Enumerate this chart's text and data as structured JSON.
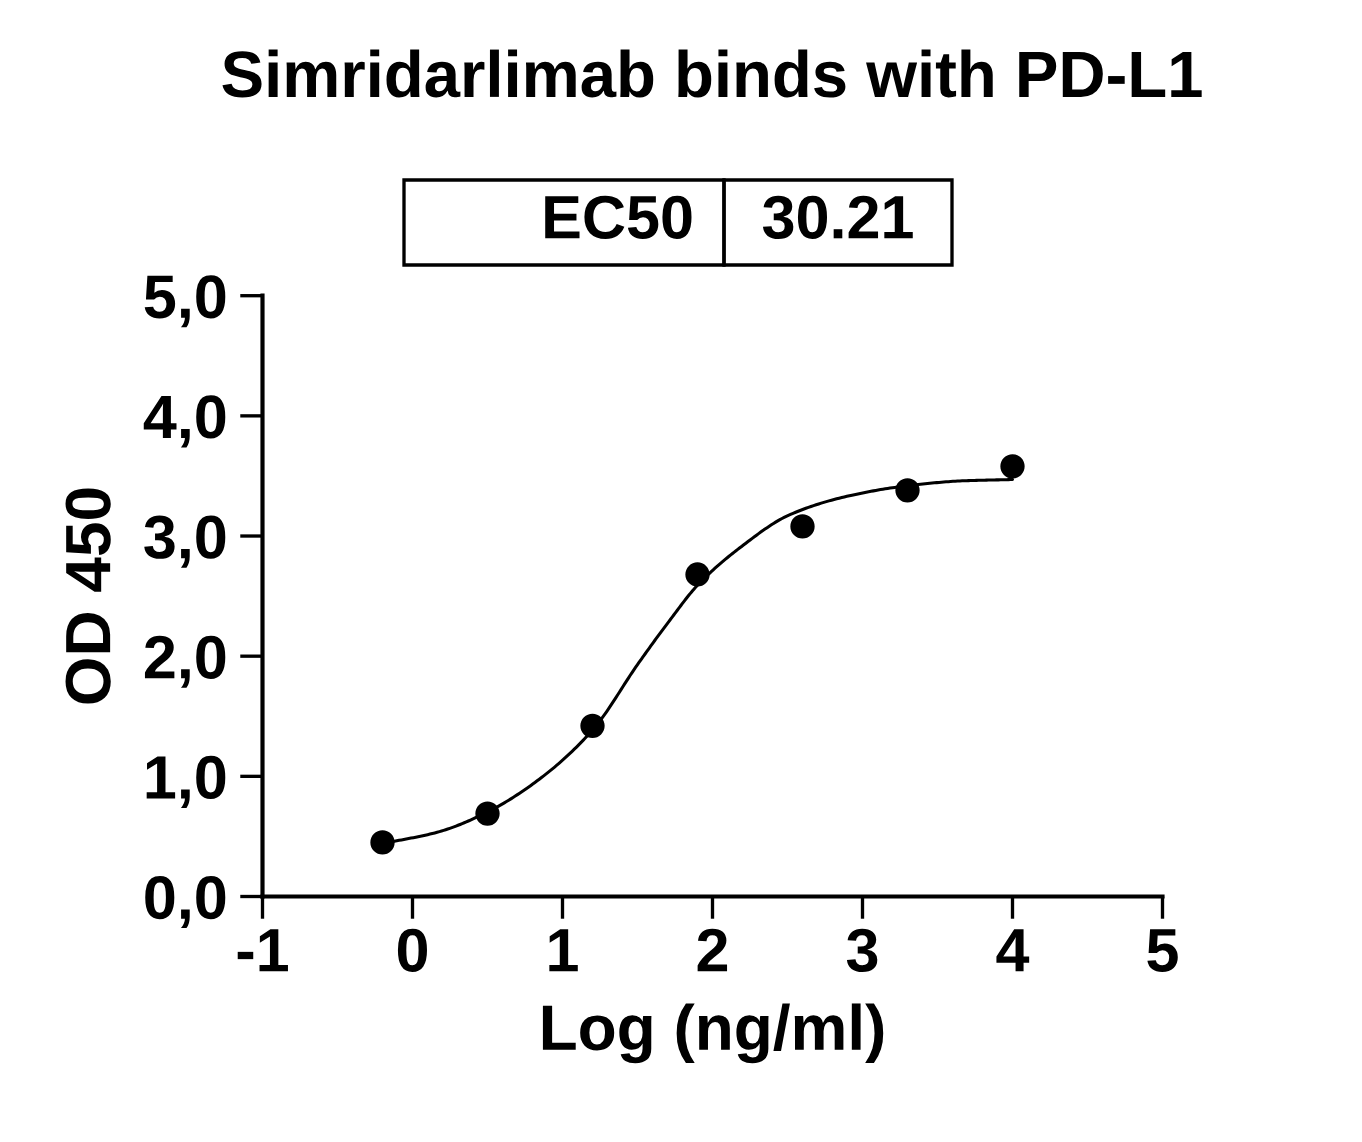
{
  "chart_data": {
    "type": "scatter",
    "title": "Simridarlimab binds with PD-L1",
    "xlabel": "Log (ng/ml)",
    "ylabel": "OD 450",
    "annotations": [
      "EC50",
      "30.21"
    ],
    "xlim": [
      -1,
      5
    ],
    "ylim": [
      0,
      5
    ],
    "xticks": [
      -1,
      0,
      1,
      2,
      3,
      4,
      5
    ],
    "yticks": [
      {
        "value": 0,
        "label": "0,0"
      },
      {
        "value": 1,
        "label": "1,0"
      },
      {
        "value": 2,
        "label": "2,0"
      },
      {
        "value": 3,
        "label": "3,0"
      },
      {
        "value": 4,
        "label": "4,0"
      },
      {
        "value": 5,
        "label": "5,0"
      }
    ],
    "grid": false,
    "line_style": "solid",
    "series": [
      {
        "color": "#000000",
        "marker": "circle",
        "x": [
          -0.2,
          0.5,
          1.2,
          1.9,
          2.6,
          3.3,
          4.0
        ],
        "values": [
          0.45,
          0.69,
          1.42,
          2.68,
          3.08,
          3.38,
          3.58
        ]
      },
      {
        "type": "line",
        "color": "#000000",
        "marker": "none",
        "x": [
          -0.2,
          0.18,
          0.51,
          0.86,
          1.21,
          1.5,
          1.71,
          1.9,
          2.18,
          2.52,
          2.93,
          3.31,
          3.68,
          4.0
        ],
        "values": [
          0.44,
          0.54,
          0.71,
          0.99,
          1.4,
          1.93,
          2.29,
          2.59,
          2.9,
          3.18,
          3.34,
          3.42,
          3.46,
          3.47
        ]
      }
    ]
  }
}
